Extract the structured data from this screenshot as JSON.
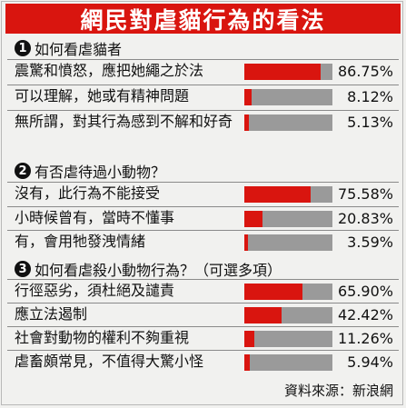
{
  "title": "網民對虐貓行為的看法",
  "source": "資料來源：新浪網",
  "chart_data": {
    "type": "bar",
    "orientation": "horizontal",
    "unit": "%",
    "groups": [
      {
        "number": "1",
        "question": "如何看虐貓者",
        "items": [
          {
            "label": "震驚和憤怒，應把她繩之於法",
            "value": 86.75,
            "display": "86.75%"
          },
          {
            "label": "可以理解，她或有精神問題",
            "value": 8.12,
            "display": "8.12%"
          },
          {
            "label": "無所謂，對其行為感到不解和好奇",
            "value": 5.13,
            "display": "5.13%"
          }
        ]
      },
      {
        "number": "2",
        "question": "有否虐待過小動物？",
        "items": [
          {
            "label": "沒有，此行為不能接受",
            "value": 75.58,
            "display": "75.58%"
          },
          {
            "label": "小時候曾有，當時不懂事",
            "value": 20.83,
            "display": "20.83%"
          },
          {
            "label": "有，會用牠發洩情緒",
            "value": 3.59,
            "display": "3.59%"
          }
        ]
      },
      {
        "number": "3",
        "question": "如何看虐殺小動物行為？（可選多項）",
        "items": [
          {
            "label": "行徑惡劣，須杜絕及譴責",
            "value": 65.9,
            "display": "65.90%"
          },
          {
            "label": "應立法遏制",
            "value": 42.42,
            "display": "42.42%"
          },
          {
            "label": "社會對動物的權利不夠重視",
            "value": 11.26,
            "display": "11.26%"
          },
          {
            "label": "虐畜頗常見，不值得大驚小怪",
            "value": 5.94,
            "display": "5.94%"
          }
        ]
      }
    ],
    "colors": {
      "fill": "#d9150f",
      "track": "#9a9a9a"
    }
  }
}
